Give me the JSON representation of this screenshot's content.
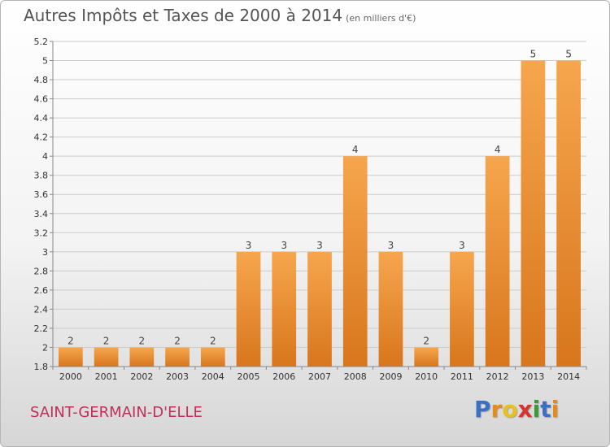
{
  "title": "Autres Impôts et Taxes de 2000 à 2014",
  "title_unit": "(en milliers d'€)",
  "commune": "SAINT-GERMAIN-D'ELLE",
  "brand": {
    "letters": [
      "P",
      "r",
      "o",
      "x",
      "i",
      "t",
      "i"
    ],
    "colors": [
      "#3a6fc4",
      "#e88a1a",
      "#e8c21a",
      "#d8322c",
      "#3a9a3a",
      "#3a6fc4",
      "#e88a1a"
    ]
  },
  "colors": {
    "bar_light": "#f6a64e",
    "bar_dark": "#d8761c",
    "grid": "#cccccc",
    "axis": "#888888"
  },
  "chart_data": {
    "type": "bar",
    "categories": [
      "2000",
      "2001",
      "2002",
      "2003",
      "2004",
      "2005",
      "2006",
      "2007",
      "2008",
      "2009",
      "2010",
      "2011",
      "2012",
      "2013",
      "2014"
    ],
    "values": [
      2,
      2,
      2,
      2,
      2,
      3,
      3,
      3,
      4,
      3,
      2,
      3,
      4,
      5,
      5
    ],
    "data_labels": [
      "2",
      "2",
      "2",
      "2",
      "2",
      "3",
      "3",
      "3",
      "4",
      "3",
      "2",
      "3",
      "4",
      "5",
      "5"
    ],
    "ylim": [
      1.8,
      5.2
    ],
    "y_ticks": [
      1.8,
      2.0,
      2.2,
      2.4,
      2.6,
      2.8,
      3.0,
      3.2,
      3.4,
      3.6,
      3.8,
      4.0,
      4.2,
      4.4,
      4.6,
      4.8,
      5.0,
      5.2
    ],
    "y_tick_labels": [
      "1.8",
      "2",
      "2.2",
      "2.4",
      "2.6",
      "2.8",
      "3",
      "3.2",
      "3.4",
      "3.6",
      "3.8",
      "4",
      "4.2",
      "4.4",
      "4.6",
      "4.8",
      "5",
      "5.2"
    ],
    "grid": true,
    "xlabel": "",
    "ylabel": ""
  }
}
